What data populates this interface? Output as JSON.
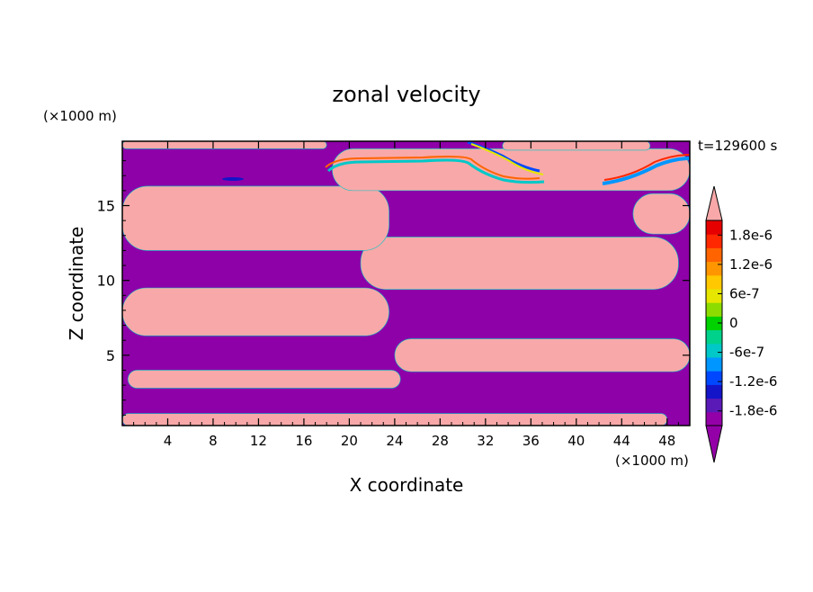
{
  "chart_data": {
    "type": "heatmap",
    "title": "zonal velocity",
    "time_label": "t=129600 s",
    "xlabel": "X coordinate",
    "ylabel": "Z coordinate",
    "x_unit": "(×1000 m)",
    "z_unit": "(×1000 m)",
    "xlim": [
      0,
      50
    ],
    "zlim": [
      0.3,
      19.3
    ],
    "x_ticks": [
      4,
      8,
      12,
      16,
      20,
      24,
      28,
      32,
      36,
      40,
      44,
      48
    ],
    "z_ticks": [
      5,
      10,
      15
    ],
    "colorbar": {
      "tick_labels": [
        "1.8e-6",
        "1.2e-6",
        "6e-7",
        "0",
        "-6e-7",
        "-1.2e-6",
        "-1.8e-6"
      ],
      "tick_values": [
        1.8e-06,
        1.2e-06,
        6e-07,
        0,
        -6e-07,
        -1.2e-06,
        -1.8e-06
      ],
      "range": [
        -2.1e-06,
        2.1e-06
      ],
      "colors": [
        "#9400a8",
        "#5a1ab8",
        "#1414c8",
        "#0048ff",
        "#0096ff",
        "#00c8c8",
        "#00d28c",
        "#00d200",
        "#8cdc00",
        "#e6e600",
        "#ffc800",
        "#ff9600",
        "#ff6400",
        "#ff2800",
        "#e60000"
      ],
      "min_extension_color": "#9400a8",
      "max_extension_color": "#f8a8a8"
    },
    "field_colors": {
      "negative": "#8e00a8",
      "positive": "#f8a8a8"
    },
    "regions": [
      {
        "sign": "positive",
        "x": [
          0,
          48
        ],
        "z": [
          0.3,
          1.1
        ]
      },
      {
        "sign": "positive",
        "x": [
          0.5,
          24.5
        ],
        "z": [
          2.8,
          4.0
        ]
      },
      {
        "sign": "positive",
        "x": [
          24,
          50
        ],
        "z": [
          3.9,
          6.1
        ]
      },
      {
        "sign": "positive",
        "x": [
          0,
          23.5
        ],
        "z": [
          6.3,
          9.5
        ]
      },
      {
        "sign": "positive",
        "x": [
          21,
          49
        ],
        "z": [
          9.4,
          12.9
        ]
      },
      {
        "sign": "positive",
        "x": [
          0,
          23.5
        ],
        "z": [
          12.0,
          16.3
        ]
      },
      {
        "sign": "positive",
        "x": [
          45,
          50
        ],
        "z": [
          13.1,
          15.8
        ]
      },
      {
        "sign": "positive",
        "x": [
          18.5,
          50
        ],
        "z": [
          16.0,
          18.8
        ]
      },
      {
        "sign": "positive",
        "x": [
          0,
          18
        ],
        "z": [
          18.8,
          19.3
        ]
      },
      {
        "sign": "positive",
        "x": [
          33.5,
          46.5
        ],
        "z": [
          18.7,
          19.3
        ]
      }
    ]
  }
}
